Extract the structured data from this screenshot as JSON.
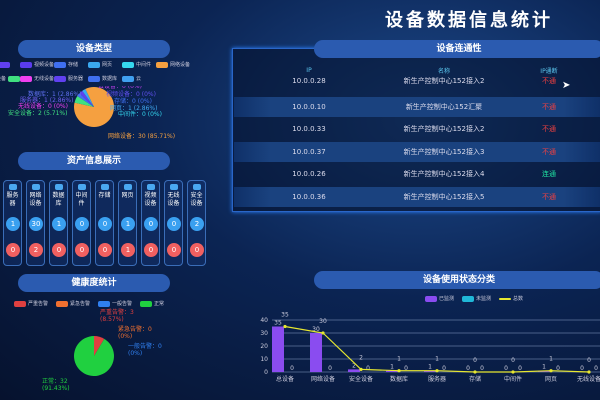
{
  "title": "设备数据信息统计",
  "device_type": {
    "header": "设备类型",
    "legend": [
      {
        "label": "设备",
        "color": "#6040f0"
      },
      {
        "label": "视频设备",
        "color": "#5a3cf0"
      },
      {
        "label": "存储",
        "color": "#3f6ff0"
      },
      {
        "label": "网页",
        "color": "#3aa8f0"
      },
      {
        "label": "中间件",
        "color": "#35d8f0"
      },
      {
        "label": "网络设备",
        "color": "#f5a040"
      },
      {
        "label": "安全设备",
        "color": "#40e080"
      },
      {
        "label": "无线设备",
        "color": "#f040f0"
      },
      {
        "label": "服务器",
        "color": "#6040f0"
      },
      {
        "label": "数据库",
        "color": "#4070f0"
      },
      {
        "label": "云",
        "color": "#40a0f0"
      }
    ],
    "labels": [
      "云设备：0 (0%)",
      "数据库：1 (2.86%)",
      "服务器：1 (2.86%)",
      "无线设备：0 (0%)",
      "安全设备：2 (5.71%)",
      "视频设备：0 (0%)",
      "存储：0 (0%)",
      "网页：1 (2.86%)",
      "中间件：0 (0%)",
      "网络设备：30 (85.71%)"
    ],
    "slices": [
      {
        "value": 30,
        "color": "#f5a040"
      },
      {
        "value": 2,
        "color": "#40e080"
      },
      {
        "value": 1,
        "color": "#4070f0"
      },
      {
        "value": 1,
        "color": "#6040f0"
      },
      {
        "value": 1,
        "color": "#3aa8f0"
      }
    ]
  },
  "assets": {
    "header": "资产信息展示",
    "cards": [
      {
        "name": "服务器",
        "a": "1",
        "b": "0"
      },
      {
        "name": "网络设备",
        "a": "30",
        "b": "2"
      },
      {
        "name": "数据库",
        "a": "1",
        "b": "0"
      },
      {
        "name": "中间件",
        "a": "0",
        "b": "0"
      },
      {
        "name": "存储",
        "a": "0",
        "b": "0"
      },
      {
        "name": "网页",
        "a": "1",
        "b": "1"
      },
      {
        "name": "视频设备",
        "a": "0",
        "b": "0"
      },
      {
        "name": "无线设备",
        "a": "0",
        "b": "0"
      },
      {
        "name": "安全设备",
        "a": "2",
        "b": "0"
      }
    ]
  },
  "health": {
    "header": "健康度统计",
    "legend": [
      {
        "label": "严重告警",
        "color": "#e04040"
      },
      {
        "label": "紧急告警",
        "color": "#f07030"
      },
      {
        "label": "一般告警",
        "color": "#3080f0"
      },
      {
        "label": "正常",
        "color": "#20d040"
      }
    ],
    "labels": {
      "severe": "严重告警：3",
      "severe_pct": "(8.57%)",
      "urgent": "紧急告警：0",
      "urgent_pct": "(0%)",
      "general": "一般告警：0",
      "general_pct": "(0%)",
      "normal": "正常：32",
      "normal_pct": "(91.43%)"
    },
    "values": [
      3,
      0,
      0,
      32
    ]
  },
  "connectivity": {
    "header": "设备连通性",
    "columns": [
      "IP",
      "名称",
      "IP通断"
    ],
    "rows": [
      {
        "ip": "10.0.0.28",
        "name": "新生产控制中心152接入2",
        "status": "不通",
        "ok": false
      },
      {
        "ip": "10.0.0.10",
        "name": "新生产控制中心152汇聚",
        "status": "不通",
        "ok": false
      },
      {
        "ip": "10.0.0.33",
        "name": "新生产控制中心152接入2",
        "status": "不通",
        "ok": false
      },
      {
        "ip": "10.0.0.37",
        "name": "新生产控制中心152接入3",
        "status": "不通",
        "ok": false
      },
      {
        "ip": "10.0.0.26",
        "name": "新生产控制中心152接入4",
        "status": "连通",
        "ok": true
      },
      {
        "ip": "10.0.0.36",
        "name": "新生产控制中心152接入5",
        "status": "不通",
        "ok": false
      }
    ]
  },
  "usage": {
    "header": "设备使用状态分类"
  },
  "chart_data": {
    "type": "bar",
    "categories": [
      "总设备",
      "网络设备",
      "安全设备",
      "数据库",
      "服务器",
      "存储",
      "中间件",
      "网页",
      "无线设备"
    ],
    "ylim": [
      0,
      40
    ],
    "yticks": [
      0,
      10,
      20,
      30,
      40
    ],
    "legend_placement": "top",
    "series": [
      {
        "name": "已监测",
        "type": "bar",
        "color": "#8a4cf0",
        "values": [
          35,
          30,
          2,
          1,
          1,
          0,
          0,
          1,
          0
        ]
      },
      {
        "name": "未监测",
        "type": "bar",
        "color": "#20b8d8",
        "values": [
          0,
          0,
          0,
          0,
          0,
          0,
          0,
          0,
          0
        ]
      },
      {
        "name": "总数",
        "type": "line",
        "color": "#e8e830",
        "values": [
          35,
          30,
          2,
          1,
          1,
          0,
          0,
          1,
          0
        ]
      }
    ]
  }
}
